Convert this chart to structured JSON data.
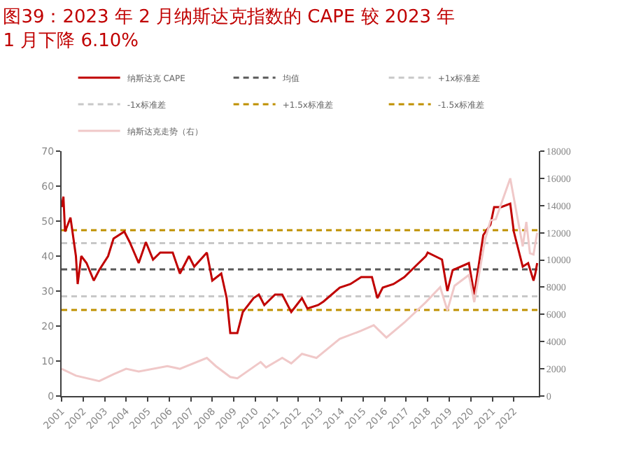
{
  "chart_data": {
    "type": "line",
    "title": "图39：2023 年 2 月纳斯达克指数的 CAPE 较 2023 年\n1 月下降 6.10%",
    "series": [
      {
        "name": "纳斯达克 CAPE",
        "color": "#c00000",
        "x": [
          "2001-01",
          "2001-02",
          "2001-03",
          "2001-06",
          "2001-09",
          "2001-10",
          "2001-12",
          "2002-03",
          "2002-07",
          "2002-10",
          "2003-03",
          "2003-06",
          "2003-12",
          "2004-03",
          "2004-08",
          "2004-12",
          "2005-04",
          "2005-08",
          "2005-12",
          "2006-03",
          "2006-07",
          "2006-12",
          "2007-03",
          "2007-10",
          "2008-01",
          "2008-06",
          "2008-09",
          "2008-11",
          "2009-03",
          "2009-06",
          "2009-12",
          "2010-03",
          "2010-06",
          "2010-12",
          "2011-04",
          "2011-09",
          "2011-12",
          "2012-03",
          "2012-06",
          "2012-12",
          "2013-03",
          "2013-12",
          "2014-06",
          "2014-12",
          "2015-06",
          "2015-09",
          "2015-12",
          "2016-06",
          "2016-12",
          "2017-06",
          "2017-12",
          "2018-01",
          "2018-09",
          "2018-12",
          "2019-03",
          "2019-12",
          "2020-03",
          "2020-08",
          "2020-12",
          "2021-02",
          "2021-06",
          "2021-11",
          "2022-01",
          "2022-06",
          "2022-09",
          "2022-12",
          "2023-01",
          "2023-02"
        ],
        "values": [
          54,
          57,
          47,
          51,
          40,
          32,
          40,
          38,
          33,
          36,
          40,
          45,
          47,
          44,
          38,
          44,
          39,
          41,
          41,
          41,
          35,
          40,
          37,
          41,
          33,
          35,
          28,
          18,
          18,
          24,
          28,
          29,
          26,
          29,
          29,
          24,
          26,
          28,
          25,
          26,
          27,
          31,
          32,
          34,
          34,
          28,
          31,
          32,
          34,
          37,
          40,
          41,
          39,
          30,
          36,
          38,
          29,
          46,
          49,
          54,
          54,
          55,
          47,
          37,
          38,
          33,
          35,
          38
        ]
      },
      {
        "name": "纳斯达克走势（右）",
        "color": "#f0c8c8",
        "axis": "y2",
        "x": [
          "2001-01",
          "2001-09",
          "2002-10",
          "2003-06",
          "2004-01",
          "2004-08",
          "2005-12",
          "2006-07",
          "2007-10",
          "2008-03",
          "2008-11",
          "2009-03",
          "2010-04",
          "2010-07",
          "2011-04",
          "2011-09",
          "2012-03",
          "2012-11",
          "2013-12",
          "2014-12",
          "2015-07",
          "2016-02",
          "2016-12",
          "2017-12",
          "2018-08",
          "2018-12",
          "2019-04",
          "2019-12",
          "2020-03",
          "2020-09",
          "2020-12",
          "2021-03",
          "2021-11",
          "2022-06",
          "2022-08",
          "2022-10",
          "2022-12",
          "2023-02"
        ],
        "values": [
          2000,
          1500,
          1100,
          1600,
          2000,
          1800,
          2200,
          2000,
          2800,
          2200,
          1400,
          1300,
          2500,
          2100,
          2800,
          2400,
          3100,
          2800,
          4200,
          4800,
          5200,
          4300,
          5400,
          6900,
          8000,
          6300,
          8100,
          8900,
          6900,
          11500,
          12900,
          13000,
          16000,
          11000,
          12800,
          10500,
          10400,
          12000
        ]
      }
    ],
    "ref_lines": [
      {
        "axis": "y",
        "value": 36.2,
        "label": "均值",
        "color": "#595959",
        "line_style": "dashed"
      },
      {
        "axis": "y",
        "value": 43.7,
        "label": "+1x标准差",
        "color": "#c8c8c8",
        "line_style": "dashed"
      },
      {
        "axis": "y",
        "value": 28.5,
        "label": "-1x标准差",
        "color": "#c8c8c8",
        "line_style": "dashed"
      },
      {
        "axis": "y",
        "value": 47.4,
        "label": "+1.5x标准差",
        "color": "#bf9000",
        "line_style": "dashed"
      },
      {
        "axis": "y",
        "value": 24.6,
        "label": "-1.5x标准差",
        "color": "#bf9000",
        "line_style": "dashed"
      }
    ],
    "xlim": [
      "2001-01-01",
      "2023-03-01"
    ],
    "xticks": [
      {
        "value": "2001-01-01",
        "label": "2001"
      },
      {
        "value": "2002-01-01",
        "label": "2002"
      },
      {
        "value": "2003-01-01",
        "label": "2003"
      },
      {
        "value": "2004-01-01",
        "label": "2004"
      },
      {
        "value": "2005-01-01",
        "label": "2005"
      },
      {
        "value": "2006-01-01",
        "label": "2006"
      },
      {
        "value": "2007-01-01",
        "label": "2007"
      },
      {
        "value": "2008-01-01",
        "label": "2008"
      },
      {
        "value": "2009-01-01",
        "label": "2009"
      },
      {
        "value": "2010-01-01",
        "label": "2010"
      },
      {
        "value": "2011-01-01",
        "label": "2011"
      },
      {
        "value": "2012-01-01",
        "label": "2012"
      },
      {
        "value": "2013-01-01",
        "label": "2013"
      },
      {
        "value": "2014-01-01",
        "label": "2014"
      },
      {
        "value": "2015-01-01",
        "label": "2015"
      },
      {
        "value": "2016-01-01",
        "label": "2016"
      },
      {
        "value": "2017-01-01",
        "label": "2017"
      },
      {
        "value": "2018-01-01",
        "label": "2018"
      },
      {
        "value": "2019-01-01",
        "label": "2019"
      },
      {
        "value": "2020-01-01",
        "label": "2020"
      },
      {
        "value": "2021-01-01",
        "label": "2021"
      },
      {
        "value": "2022-01-01",
        "label": "2022"
      }
    ],
    "ylim": [
      0,
      70
    ],
    "yticks": [
      0,
      10,
      20,
      30,
      40,
      50,
      60,
      70
    ],
    "y2lim": [
      0,
      18000
    ],
    "y2ticks": [
      0,
      2000,
      4000,
      6000,
      8000,
      10000,
      12000,
      14000,
      16000,
      18000
    ],
    "legend": "top",
    "marker": "none",
    "line_style": "solid"
  }
}
